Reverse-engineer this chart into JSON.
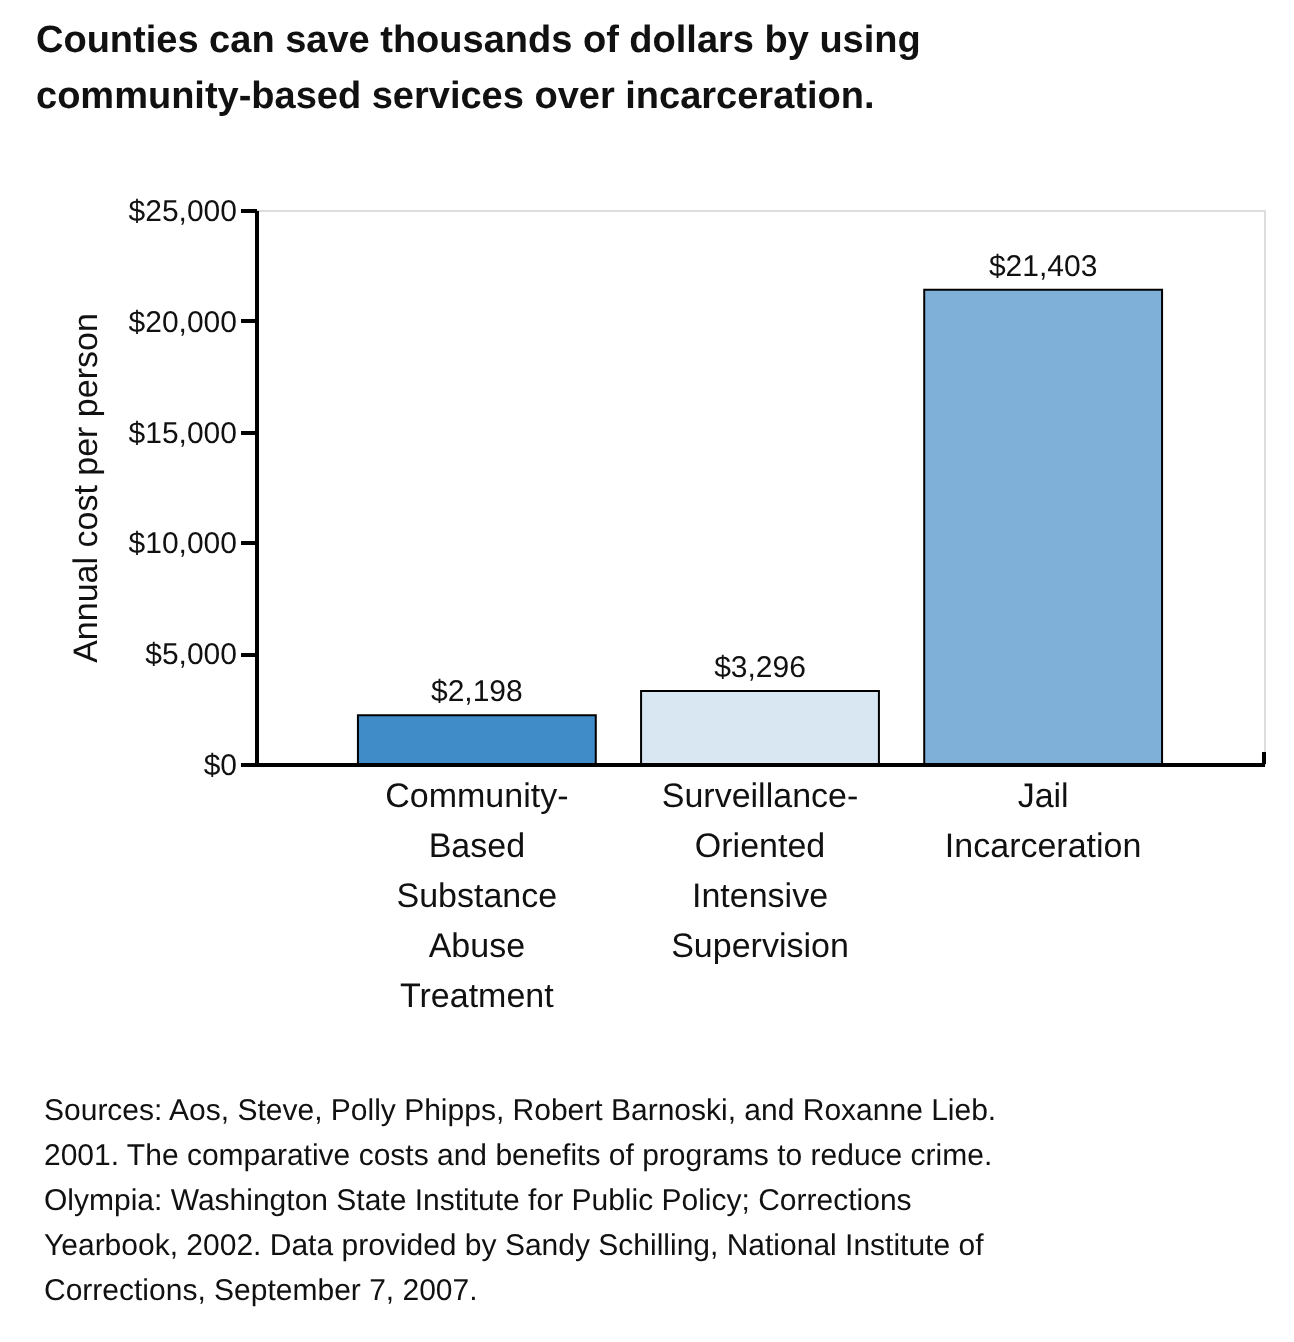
{
  "chart_data": {
    "type": "bar",
    "title": "Counties can save thousands of dollars by using community-based services over incarceration.",
    "ylabel": "Annual cost per person",
    "categories": [
      "Community-\nBased\nSubstance\nAbuse\nTreatment",
      "Surveillance-\nOriented\nIntensive\nSupervision",
      "Jail\nIncarceration"
    ],
    "values": [
      2198,
      3296,
      21403
    ],
    "colors": [
      "#3f8cc8",
      "#d9e7f3",
      "#7fb1d8"
    ],
    "value_labels": [
      "$2,198",
      "$3,296",
      "$21,403"
    ],
    "ylim": [
      0,
      25000
    ],
    "yticks": [
      {
        "value": 0,
        "label": "$0"
      },
      {
        "value": 5000,
        "label": "$5,000"
      },
      {
        "value": 10000,
        "label": "$10,000"
      },
      {
        "value": 15000,
        "label": "$15,000"
      },
      {
        "value": 20000,
        "label": "$20,000"
      },
      {
        "value": 25000,
        "label": "$25,000"
      }
    ],
    "grid": false,
    "annotations": [
      "Sources: Aos, Steve, Polly Phipps, Robert Barnoski, and Roxanne Lieb. 2001. The comparative costs and benefits of programs to reduce crime. Olympia: Washington State Institute for Public Policy; Corrections Yearbook, 2002. Data provided by Sandy Schilling, National Institute of Corrections, September 7, 2007."
    ]
  }
}
